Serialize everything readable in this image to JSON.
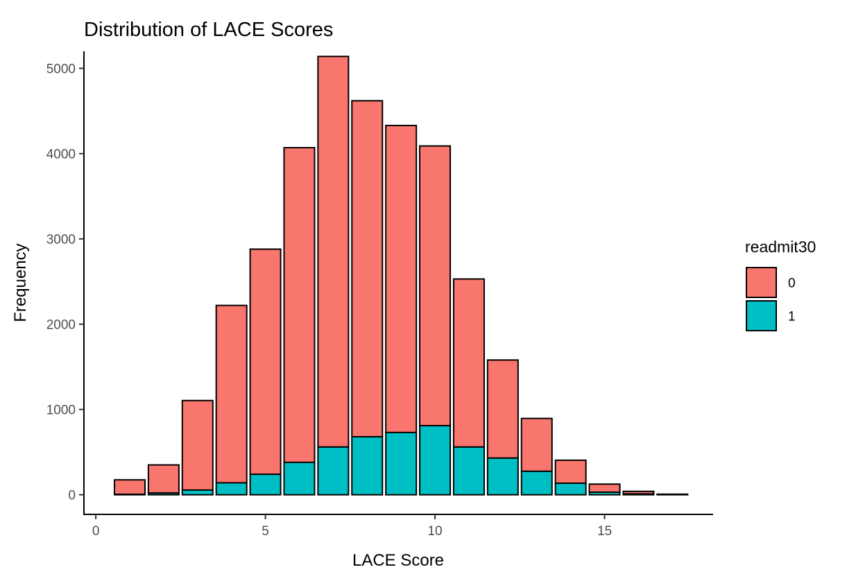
{
  "chart_data": {
    "type": "bar",
    "stacked": true,
    "title": "Distribution of LACE Scores",
    "xlabel": "LACE Score",
    "ylabel": "Frequency",
    "x": [
      1,
      2,
      3,
      4,
      5,
      6,
      7,
      8,
      9,
      10,
      11,
      12,
      13,
      14,
      15,
      16,
      17
    ],
    "series": [
      {
        "name": "0",
        "color": "#F8766D",
        "values": [
          170,
          330,
          1050,
          2080,
          2640,
          3690,
          4580,
          3940,
          3600,
          3280,
          1970,
          1150,
          620,
          270,
          95,
          30,
          5
        ]
      },
      {
        "name": "1",
        "color": "#00BFC4",
        "values": [
          5,
          20,
          55,
          140,
          240,
          380,
          560,
          680,
          730,
          810,
          560,
          430,
          275,
          135,
          30,
          10,
          2
        ]
      }
    ],
    "xlim": [
      -0.35,
      18.2
    ],
    "ylim": [
      -230,
      5200
    ],
    "xticks": [
      0,
      5,
      10,
      15
    ],
    "xtick_labels": [
      "0",
      "5",
      "10",
      "15"
    ],
    "yticks": [
      0,
      1000,
      2000,
      3000,
      4000,
      5000
    ],
    "ytick_labels": [
      "0",
      "1000",
      "2000",
      "3000",
      "4000",
      "5000"
    ],
    "legend": {
      "title": "readmit30",
      "position": "right"
    },
    "grid": false
  }
}
